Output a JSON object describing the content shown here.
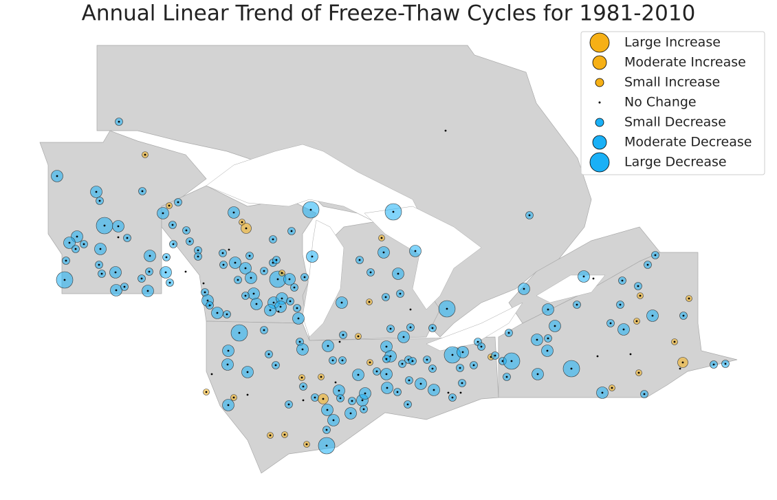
{
  "title": "Annual Linear Trend of Freeze-Thaw Cycles for 1981-2010",
  "legend": {
    "items": [
      "Large Increase",
      "Moderate Increase",
      "Small Increase",
      "No Change",
      "Small Decrease",
      "Moderate Decrease",
      "Large Decrease"
    ]
  }
}
